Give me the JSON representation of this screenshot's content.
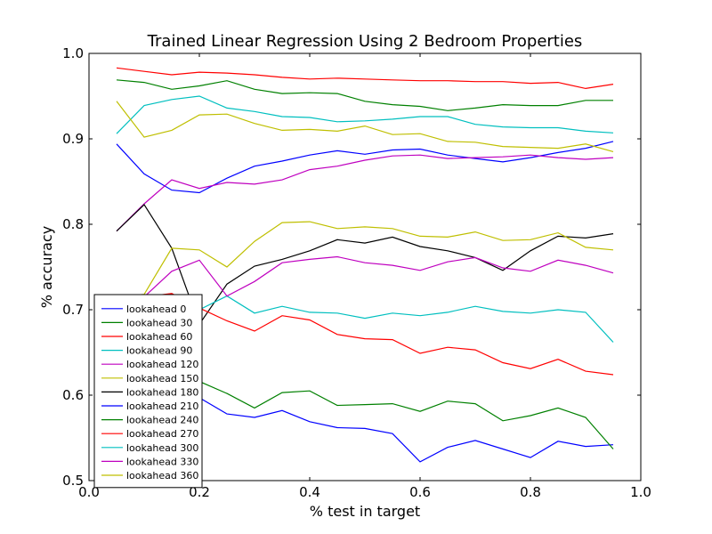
{
  "chart_data": {
    "type": "line",
    "title": "Trained Linear Regression Using 2 Bedroom Properties",
    "xlabel": "% test in target",
    "ylabel": "% accuracy",
    "xlim": [
      0.0,
      1.0
    ],
    "ylim": [
      0.5,
      1.0
    ],
    "xticks": [
      "0.0",
      "0.2",
      "0.4",
      "0.6",
      "0.8",
      "1.0"
    ],
    "yticks": [
      "0.5",
      "0.6",
      "0.7",
      "0.8",
      "0.9",
      "1.0"
    ],
    "legend_position": "lower-left",
    "x": [
      0.05,
      0.1,
      0.15,
      0.2,
      0.25,
      0.3,
      0.35,
      0.4,
      0.45,
      0.5,
      0.55,
      0.6,
      0.65,
      0.7,
      0.75,
      0.8,
      0.85,
      0.9,
      0.95
    ],
    "series": [
      {
        "name": "lookahead 0",
        "color": "#0000ff",
        "values": [
          0.894,
          0.859,
          0.84,
          0.837,
          0.854,
          0.868,
          0.874,
          0.881,
          0.886,
          0.882,
          0.887,
          0.888,
          0.881,
          0.877,
          0.873,
          0.878,
          0.884,
          0.889,
          0.897
        ]
      },
      {
        "name": "lookahead 30",
        "color": "#008000",
        "values": [
          0.969,
          0.966,
          0.958,
          0.962,
          0.968,
          0.958,
          0.953,
          0.954,
          0.953,
          0.944,
          0.94,
          0.938,
          0.933,
          0.936,
          0.94,
          0.939,
          0.939,
          0.945,
          0.945
        ]
      },
      {
        "name": "lookahead 60",
        "color": "#ff0000",
        "values": [
          0.983,
          0.979,
          0.975,
          0.978,
          0.977,
          0.975,
          0.972,
          0.97,
          0.971,
          0.97,
          0.969,
          0.968,
          0.968,
          0.967,
          0.967,
          0.965,
          0.966,
          0.959,
          0.964
        ]
      },
      {
        "name": "lookahead 90",
        "color": "#00bfbf",
        "values": [
          0.906,
          0.939,
          0.946,
          0.95,
          0.936,
          0.932,
          0.926,
          0.925,
          0.92,
          0.921,
          0.923,
          0.926,
          0.926,
          0.917,
          0.914,
          0.913,
          0.913,
          0.909,
          0.907
        ]
      },
      {
        "name": "lookahead 120",
        "color": "#bf00bf",
        "values": [
          0.792,
          0.824,
          0.852,
          0.842,
          0.849,
          0.847,
          0.852,
          0.864,
          0.868,
          0.875,
          0.88,
          0.881,
          0.877,
          0.878,
          0.879,
          0.881,
          0.878,
          0.876,
          0.878
        ]
      },
      {
        "name": "lookahead 150",
        "color": "#bfbf00",
        "values": [
          0.944,
          0.902,
          0.91,
          0.928,
          0.929,
          0.918,
          0.91,
          0.911,
          0.909,
          0.915,
          0.905,
          0.906,
          0.897,
          0.896,
          0.891,
          0.89,
          0.889,
          0.894,
          0.885
        ]
      },
      {
        "name": "lookahead 180",
        "color": "#000000",
        "values": [
          0.792,
          0.823,
          0.772,
          0.683,
          0.73,
          0.751,
          0.759,
          0.769,
          0.782,
          0.778,
          0.785,
          0.774,
          0.769,
          0.761,
          0.746,
          0.769,
          0.786,
          0.784,
          0.789
        ]
      },
      {
        "name": "lookahead 210",
        "color": "#0000ff",
        "values": [
          0.66,
          0.64,
          0.62,
          0.597,
          0.578,
          0.574,
          0.582,
          0.569,
          0.562,
          0.561,
          0.555,
          0.522,
          0.539,
          0.547,
          0.537,
          0.527,
          0.546,
          0.54,
          0.542
        ]
      },
      {
        "name": "lookahead 240",
        "color": "#008000",
        "values": [
          0.68,
          0.66,
          0.64,
          0.616,
          0.602,
          0.585,
          0.603,
          0.605,
          0.588,
          0.589,
          0.59,
          0.581,
          0.593,
          0.59,
          0.57,
          0.576,
          0.585,
          0.574,
          0.537
        ]
      },
      {
        "name": "lookahead 270",
        "color": "#ff0000",
        "values": [
          0.71,
          0.715,
          0.719,
          0.702,
          0.687,
          0.675,
          0.693,
          0.688,
          0.671,
          0.666,
          0.665,
          0.649,
          0.656,
          0.653,
          0.638,
          0.631,
          0.642,
          0.628,
          0.624
        ]
      },
      {
        "name": "lookahead 300",
        "color": "#00bfbf",
        "values": [
          0.712,
          0.708,
          0.705,
          0.7,
          0.716,
          0.696,
          0.704,
          0.697,
          0.696,
          0.69,
          0.696,
          0.693,
          0.697,
          0.704,
          0.698,
          0.696,
          0.7,
          0.697,
          0.662
        ]
      },
      {
        "name": "lookahead 330",
        "color": "#bf00bf",
        "values": [
          0.712,
          0.715,
          0.745,
          0.758,
          0.716,
          0.733,
          0.755,
          0.759,
          0.762,
          0.755,
          0.752,
          0.746,
          0.756,
          0.761,
          0.749,
          0.745,
          0.758,
          0.752,
          0.743
        ]
      },
      {
        "name": "lookahead 360",
        "color": "#bfbf00",
        "values": [
          0.715,
          0.718,
          0.772,
          0.77,
          0.75,
          0.78,
          0.802,
          0.803,
          0.795,
          0.797,
          0.795,
          0.786,
          0.785,
          0.791,
          0.781,
          0.782,
          0.79,
          0.773,
          0.77
        ]
      }
    ]
  }
}
